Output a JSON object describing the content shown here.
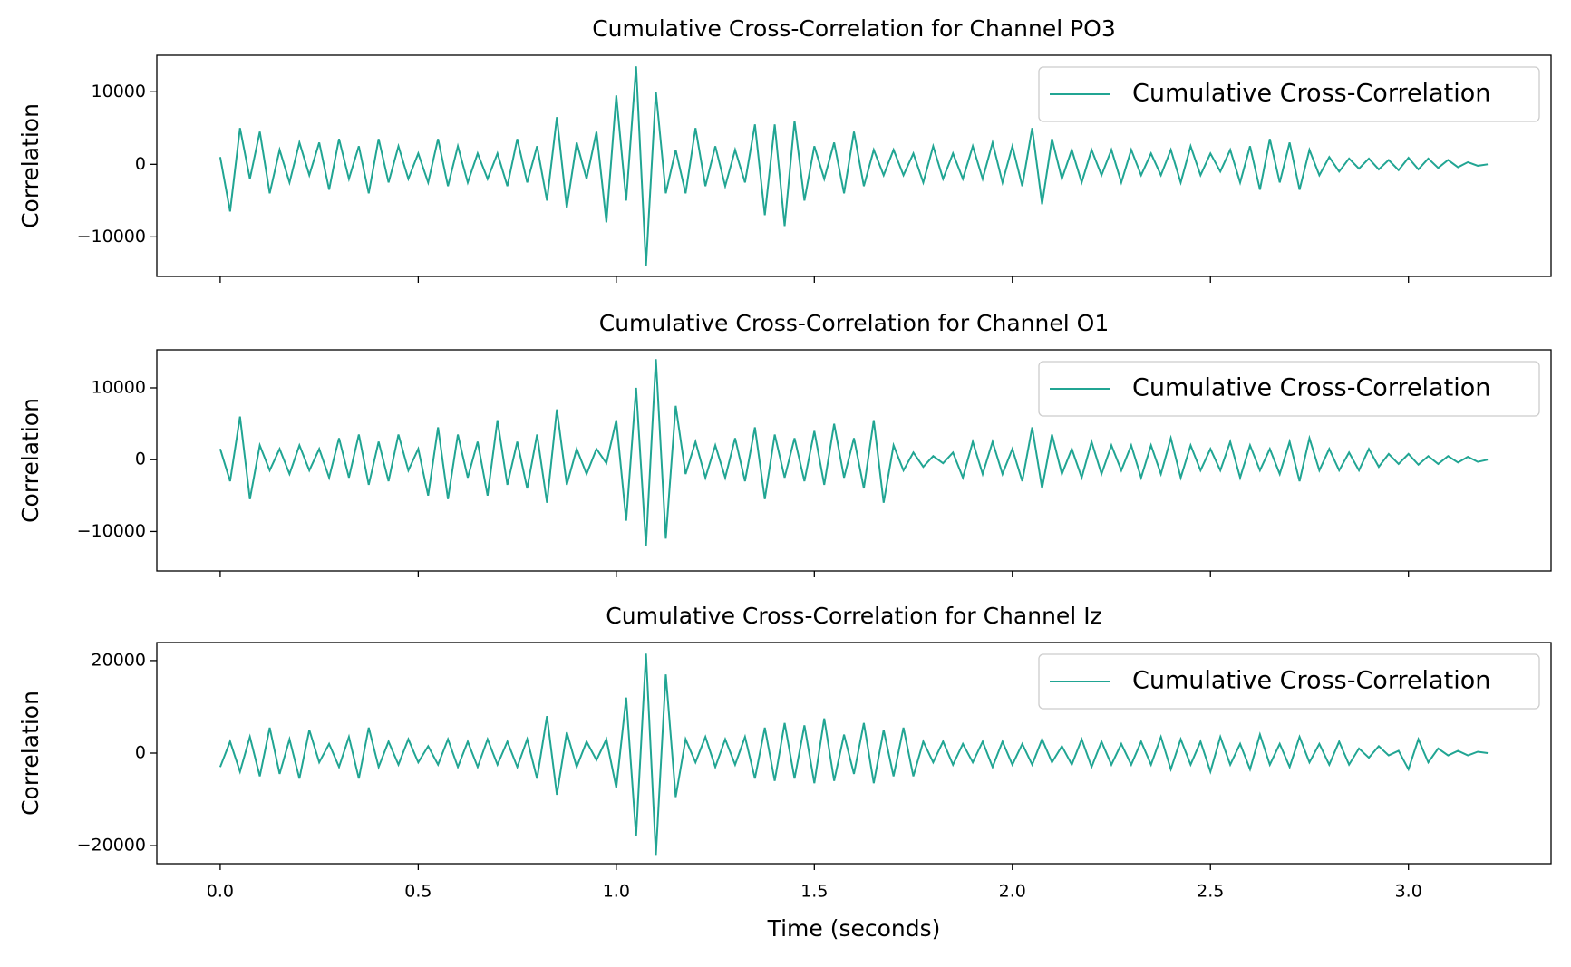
{
  "chart_data": [
    {
      "type": "line",
      "title": "Cumulative Cross-Correlation for Channel PO3",
      "ylabel": "Correlation",
      "legend": "upper right",
      "x": [
        0,
        0.025,
        0.05,
        0.075,
        0.1,
        0.125,
        0.15,
        0.175,
        0.2,
        0.225,
        0.25,
        0.275,
        0.3,
        0.325,
        0.35,
        0.375,
        0.4,
        0.425,
        0.45,
        0.475,
        0.5,
        0.525,
        0.55,
        0.575,
        0.6,
        0.625,
        0.65,
        0.675,
        0.7,
        0.725,
        0.75,
        0.775,
        0.8,
        0.825,
        0.85,
        0.875,
        0.9,
        0.925,
        0.95,
        0.975,
        1,
        1.025,
        1.05,
        1.075,
        1.1,
        1.125,
        1.15,
        1.175,
        1.2,
        1.225,
        1.25,
        1.275,
        1.3,
        1.325,
        1.35,
        1.375,
        1.4,
        1.425,
        1.45,
        1.475,
        1.5,
        1.525,
        1.55,
        1.575,
        1.6,
        1.625,
        1.65,
        1.675,
        1.7,
        1.725,
        1.75,
        1.775,
        1.8,
        1.825,
        1.85,
        1.875,
        1.9,
        1.925,
        1.95,
        1.975,
        2,
        2.025,
        2.05,
        2.075,
        2.1,
        2.125,
        2.15,
        2.175,
        2.2,
        2.225,
        2.25,
        2.275,
        2.3,
        2.325,
        2.35,
        2.375,
        2.4,
        2.425,
        2.45,
        2.475,
        2.5,
        2.525,
        2.55,
        2.575,
        2.6,
        2.625,
        2.65,
        2.675,
        2.7,
        2.725,
        2.75,
        2.775,
        2.8,
        2.825,
        2.85,
        2.875,
        2.9,
        2.925,
        2.95,
        2.975,
        3,
        3.025,
        3.05,
        3.075,
        3.1,
        3.125,
        3.15,
        3.175,
        3.2
      ],
      "series": [
        {
          "name": "Cumulative Cross-Correlation",
          "color": "#21a593",
          "values": [
            1000,
            -6500,
            5000,
            -2000,
            4500,
            -4000,
            2000,
            -2500,
            3000,
            -1500,
            3000,
            -3500,
            3500,
            -2000,
            2500,
            -4000,
            3500,
            -2500,
            2500,
            -2000,
            1500,
            -2500,
            3500,
            -3000,
            2500,
            -2500,
            1500,
            -2000,
            1500,
            -3000,
            3500,
            -2500,
            2500,
            -5000,
            6500,
            -6000,
            3000,
            -2000,
            4500,
            -8000,
            9500,
            -5000,
            13500,
            -14000,
            10000,
            -4000,
            2000,
            -4000,
            5000,
            -3000,
            2500,
            -3000,
            2000,
            -2500,
            5500,
            -7000,
            5500,
            -8500,
            6000,
            -5000,
            2500,
            -2000,
            3000,
            -4000,
            4500,
            -3000,
            2000,
            -1500,
            2000,
            -1500,
            1500,
            -2500,
            2500,
            -2000,
            1500,
            -2000,
            2500,
            -2000,
            3000,
            -2500,
            2500,
            -3000,
            5000,
            -5500,
            3500,
            -2000,
            2000,
            -2500,
            2000,
            -1500,
            2000,
            -2500,
            2000,
            -1500,
            1500,
            -1500,
            2000,
            -2500,
            2500,
            -1500,
            1500,
            -1000,
            2000,
            -2500,
            2500,
            -3500,
            3500,
            -2500,
            3000,
            -3500,
            2000,
            -1500,
            1000,
            -1000,
            800,
            -600,
            800,
            -700,
            600,
            -800,
            900,
            -700,
            800,
            -500,
            600,
            -400,
            300,
            -200,
            0
          ]
        }
      ],
      "xlim": [
        -0.16,
        3.36
      ],
      "xticks": [
        0,
        0.5,
        1,
        1.5,
        2,
        2.5,
        3
      ],
      "ylim": [
        -15450,
        15030
      ],
      "yticks": [
        {
          "value": -10000,
          "label": "−10000"
        },
        0,
        10000
      ]
    },
    {
      "type": "line",
      "title": "Cumulative Cross-Correlation for Channel O1",
      "ylabel": "Correlation",
      "legend": "upper right",
      "x": [
        0,
        0.025,
        0.05,
        0.075,
        0.1,
        0.125,
        0.15,
        0.175,
        0.2,
        0.225,
        0.25,
        0.275,
        0.3,
        0.325,
        0.35,
        0.375,
        0.4,
        0.425,
        0.45,
        0.475,
        0.5,
        0.525,
        0.55,
        0.575,
        0.6,
        0.625,
        0.65,
        0.675,
        0.7,
        0.725,
        0.75,
        0.775,
        0.8,
        0.825,
        0.85,
        0.875,
        0.9,
        0.925,
        0.95,
        0.975,
        1,
        1.025,
        1.05,
        1.075,
        1.1,
        1.125,
        1.15,
        1.175,
        1.2,
        1.225,
        1.25,
        1.275,
        1.3,
        1.325,
        1.35,
        1.375,
        1.4,
        1.425,
        1.45,
        1.475,
        1.5,
        1.525,
        1.55,
        1.575,
        1.6,
        1.625,
        1.65,
        1.675,
        1.7,
        1.725,
        1.75,
        1.775,
        1.8,
        1.825,
        1.85,
        1.875,
        1.9,
        1.925,
        1.95,
        1.975,
        2,
        2.025,
        2.05,
        2.075,
        2.1,
        2.125,
        2.15,
        2.175,
        2.2,
        2.225,
        2.25,
        2.275,
        2.3,
        2.325,
        2.35,
        2.375,
        2.4,
        2.425,
        2.45,
        2.475,
        2.5,
        2.525,
        2.55,
        2.575,
        2.6,
        2.625,
        2.65,
        2.675,
        2.7,
        2.725,
        2.75,
        2.775,
        2.8,
        2.825,
        2.85,
        2.875,
        2.9,
        2.925,
        2.95,
        2.975,
        3,
        3.025,
        3.05,
        3.075,
        3.1,
        3.125,
        3.15,
        3.175,
        3.2
      ],
      "series": [
        {
          "name": "Cumulative Cross-Correlation",
          "color": "#21a593",
          "values": [
            1500,
            -3000,
            6000,
            -5500,
            2000,
            -1500,
            1500,
            -2000,
            2000,
            -1500,
            1500,
            -2500,
            3000,
            -2500,
            3500,
            -3500,
            2500,
            -3000,
            3500,
            -1500,
            1500,
            -5000,
            4500,
            -5500,
            3500,
            -2500,
            2500,
            -5000,
            5500,
            -3500,
            2500,
            -4000,
            3500,
            -6000,
            7000,
            -3500,
            1500,
            -2000,
            1500,
            -500,
            5500,
            -8500,
            10000,
            -12000,
            14000,
            -11000,
            7500,
            -2000,
            2500,
            -2500,
            2000,
            -2500,
            3000,
            -3000,
            4500,
            -5500,
            3500,
            -2500,
            3000,
            -3000,
            4000,
            -3500,
            5000,
            -2500,
            3000,
            -4000,
            5500,
            -6000,
            2000,
            -1500,
            1000,
            -1000,
            500,
            -500,
            1000,
            -2500,
            2500,
            -2000,
            2500,
            -2000,
            1500,
            -3000,
            4500,
            -4000,
            3500,
            -2000,
            1500,
            -2500,
            2500,
            -2000,
            2000,
            -1500,
            2000,
            -2500,
            2000,
            -2000,
            3000,
            -2500,
            2000,
            -1500,
            1500,
            -1500,
            2500,
            -2500,
            2000,
            -1500,
            1500,
            -2000,
            2500,
            -3000,
            3000,
            -1500,
            1500,
            -1500,
            1000,
            -1500,
            1500,
            -1000,
            800,
            -600,
            800,
            -700,
            500,
            -600,
            500,
            -400,
            400,
            -300,
            0
          ]
        }
      ],
      "xlim": [
        -0.16,
        3.36
      ],
      "xticks": [
        0,
        0.5,
        1,
        1.5,
        2,
        2.5,
        3
      ],
      "ylim": [
        -15500,
        15300
      ],
      "yticks": [
        {
          "value": -10000,
          "label": "−10000"
        },
        0,
        10000
      ]
    },
    {
      "type": "line",
      "title": "Cumulative Cross-Correlation for Channel Iz",
      "ylabel": "Correlation",
      "xlabel": "Time (seconds)",
      "legend": "upper right",
      "x": [
        0,
        0.025,
        0.05,
        0.075,
        0.1,
        0.125,
        0.15,
        0.175,
        0.2,
        0.225,
        0.25,
        0.275,
        0.3,
        0.325,
        0.35,
        0.375,
        0.4,
        0.425,
        0.45,
        0.475,
        0.5,
        0.525,
        0.55,
        0.575,
        0.6,
        0.625,
        0.65,
        0.675,
        0.7,
        0.725,
        0.75,
        0.775,
        0.8,
        0.825,
        0.85,
        0.875,
        0.9,
        0.925,
        0.95,
        0.975,
        1,
        1.025,
        1.05,
        1.075,
        1.1,
        1.125,
        1.15,
        1.175,
        1.2,
        1.225,
        1.25,
        1.275,
        1.3,
        1.325,
        1.35,
        1.375,
        1.4,
        1.425,
        1.45,
        1.475,
        1.5,
        1.525,
        1.55,
        1.575,
        1.6,
        1.625,
        1.65,
        1.675,
        1.7,
        1.725,
        1.75,
        1.775,
        1.8,
        1.825,
        1.85,
        1.875,
        1.9,
        1.925,
        1.95,
        1.975,
        2,
        2.025,
        2.05,
        2.075,
        2.1,
        2.125,
        2.15,
        2.175,
        2.2,
        2.225,
        2.25,
        2.275,
        2.3,
        2.325,
        2.35,
        2.375,
        2.4,
        2.425,
        2.45,
        2.475,
        2.5,
        2.525,
        2.55,
        2.575,
        2.6,
        2.625,
        2.65,
        2.675,
        2.7,
        2.725,
        2.75,
        2.775,
        2.8,
        2.825,
        2.85,
        2.875,
        2.9,
        2.925,
        2.95,
        2.975,
        3,
        3.025,
        3.05,
        3.075,
        3.1,
        3.125,
        3.15,
        3.175,
        3.2
      ],
      "series": [
        {
          "name": "Cumulative Cross-Correlation",
          "color": "#21a593",
          "values": [
            -3000,
            2500,
            -4000,
            3500,
            -5000,
            5500,
            -4500,
            3000,
            -5500,
            5000,
            -2000,
            2000,
            -3000,
            3500,
            -5500,
            5500,
            -3000,
            2500,
            -2500,
            3000,
            -2000,
            1500,
            -2500,
            3000,
            -3000,
            2500,
            -3000,
            3000,
            -2500,
            2500,
            -3000,
            3000,
            -5500,
            8000,
            -9000,
            4500,
            -3000,
            2500,
            -1500,
            3000,
            -7500,
            12000,
            -18000,
            21500,
            -22000,
            17000,
            -9500,
            3000,
            -2000,
            3500,
            -3000,
            3000,
            -2500,
            3500,
            -5500,
            5500,
            -6000,
            6500,
            -5500,
            6000,
            -6500,
            7500,
            -6000,
            4000,
            -4500,
            6500,
            -6500,
            5000,
            -5000,
            5500,
            -5000,
            2500,
            -2000,
            2500,
            -2500,
            2000,
            -2000,
            2500,
            -3000,
            2500,
            -2500,
            2000,
            -2500,
            3000,
            -2000,
            1500,
            -2500,
            3000,
            -3000,
            2500,
            -2500,
            2000,
            -2500,
            2500,
            -2500,
            3500,
            -3500,
            3000,
            -2500,
            2500,
            -4000,
            3500,
            -2500,
            2000,
            -3500,
            4000,
            -2500,
            2000,
            -3000,
            3500,
            -2000,
            2000,
            -2500,
            2500,
            -2500,
            1000,
            -1000,
            1500,
            -500,
            500,
            -3500,
            3000,
            -2000,
            1000,
            -500,
            500,
            -500,
            300,
            0
          ]
        }
      ],
      "xlim": [
        -0.16,
        3.36
      ],
      "xticks": [
        {
          "value": 0,
          "label": "0.0"
        },
        0.5,
        {
          "value": 1,
          "label": "1.0"
        },
        1.5,
        {
          "value": 2,
          "label": "2.0"
        },
        2.5,
        {
          "value": 3,
          "label": "3.0"
        }
      ],
      "ylim": [
        -23900,
        23900
      ],
      "yticks": [
        {
          "value": -20000,
          "label": "−20000"
        },
        0,
        20000
      ]
    }
  ]
}
